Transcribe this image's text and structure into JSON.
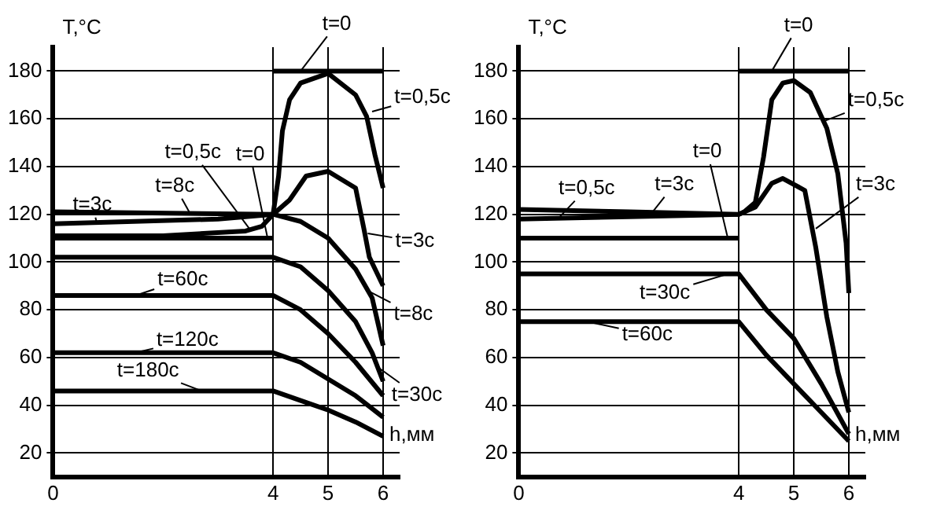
{
  "chart_data": [
    {
      "type": "line",
      "xlabel": "h,мм",
      "ylabel": "T,°C",
      "xlim": [
        0,
        6.3
      ],
      "ylim": [
        10,
        190
      ],
      "xticks": [
        0,
        4,
        5,
        6
      ],
      "yticks": [
        20,
        40,
        60,
        80,
        100,
        120,
        140,
        160,
        180
      ],
      "grid": true,
      "series": [
        {
          "color": "#000000",
          "x": [
            0,
            4
          ],
          "values": [
            110,
            110
          ]
        },
        {
          "color": "#000000",
          "x": [
            4,
            6
          ],
          "values": [
            180,
            180
          ]
        },
        {
          "color": "#000000",
          "x": [
            0,
            2,
            3.5,
            3.8,
            4,
            4.1,
            4.17,
            4.3,
            4.5,
            5,
            5.5,
            5.7,
            5.85,
            6
          ],
          "values": [
            111,
            111,
            113,
            115,
            120,
            136,
            155,
            168,
            175,
            179,
            170,
            161,
            145,
            131
          ]
        },
        {
          "color": "#000000",
          "x": [
            0,
            3,
            4,
            4.3,
            4.6,
            5,
            5.5,
            5.65,
            5.75,
            6
          ],
          "values": [
            116,
            118,
            120,
            126,
            136,
            138,
            131,
            114,
            102,
            90
          ]
        },
        {
          "color": "#000000",
          "x": [
            0,
            4,
            4.5,
            5,
            5.5,
            5.8,
            6
          ],
          "values": [
            121,
            120,
            117,
            110,
            97,
            85,
            65
          ]
        },
        {
          "color": "#000000",
          "x": [
            0,
            4,
            4.5,
            5,
            5.5,
            5.8,
            6
          ],
          "values": [
            102,
            102,
            98,
            88,
            75,
            62,
            50
          ]
        },
        {
          "color": "#000000",
          "x": [
            0,
            4,
            4.5,
            5,
            5.5,
            6
          ],
          "values": [
            86,
            86,
            80,
            70,
            58,
            44
          ]
        },
        {
          "color": "#000000",
          "x": [
            0,
            4,
            4.5,
            5,
            5.5,
            6
          ],
          "values": [
            62,
            62,
            58,
            51,
            44,
            35
          ]
        },
        {
          "color": "#000000",
          "x": [
            0,
            4,
            4.5,
            5,
            5.5,
            6
          ],
          "values": [
            46,
            46,
            42,
            38,
            33,
            27
          ]
        }
      ],
      "annotations": [
        {
          "text": "t=0",
          "x": 4.5,
          "y": 180
        },
        {
          "text": "t=0,5с",
          "x": 5.8,
          "y": 163
        },
        {
          "text": "t=0,5с",
          "x": 3.6,
          "y": 113
        },
        {
          "text": "t=0",
          "x": 3.9,
          "y": 110
        },
        {
          "text": "t=3с",
          "x": 0.8,
          "y": 116
        },
        {
          "text": "t=8с",
          "x": 2.5,
          "y": 120
        },
        {
          "text": "t=3с",
          "x": 5.72,
          "y": 112
        },
        {
          "text": "t=8с",
          "x": 5.72,
          "y": 88
        },
        {
          "text": "t=30с",
          "x": 5.9,
          "y": 56
        },
        {
          "text": "t=60с",
          "x": 1.5,
          "y": 86
        },
        {
          "text": "t=120с",
          "x": 1.5,
          "y": 62
        },
        {
          "text": "t=180с",
          "x": 2.7,
          "y": 46
        }
      ]
    },
    {
      "type": "line",
      "xlabel": "h,мм",
      "ylabel": "T,°C",
      "xlim": [
        0,
        6.3
      ],
      "ylim": [
        10,
        190
      ],
      "xticks": [
        0,
        4,
        5,
        6
      ],
      "yticks": [
        20,
        40,
        60,
        80,
        100,
        120,
        140,
        160,
        180
      ],
      "grid": true,
      "series": [
        {
          "color": "#000000",
          "x": [
            0,
            4
          ],
          "values": [
            110,
            110
          ]
        },
        {
          "color": "#000000",
          "x": [
            4,
            6
          ],
          "values": [
            180,
            180
          ]
        },
        {
          "color": "#000000",
          "x": [
            0,
            2,
            4,
            4.1,
            4.3,
            4.45,
            4.6,
            4.8,
            5,
            5.3,
            5.6,
            5.8,
            5.95,
            6
          ],
          "values": [
            118,
            119,
            120,
            121,
            125,
            144,
            168,
            175,
            176,
            171,
            156,
            137,
            108,
            87
          ]
        },
        {
          "color": "#000000",
          "x": [
            0,
            2,
            4,
            4.3,
            4.6,
            4.8,
            5.2,
            5.4,
            5.6,
            5.8,
            6
          ],
          "values": [
            122,
            121,
            120,
            123,
            133,
            135,
            130,
            106,
            77,
            54,
            37
          ]
        },
        {
          "color": "#000000",
          "x": [
            0,
            4,
            4.5,
            5,
            5.5,
            6
          ],
          "values": [
            95,
            95,
            80,
            68,
            49,
            28
          ]
        },
        {
          "color": "#000000",
          "x": [
            0,
            4,
            4.5,
            5,
            5.5,
            6
          ],
          "values": [
            75,
            75,
            61,
            49,
            37,
            25
          ]
        }
      ],
      "annotations": [
        {
          "text": "t=0",
          "x": 4.6,
          "y": 180
        },
        {
          "text": "t=0,5с",
          "x": 5.55,
          "y": 159
        },
        {
          "text": "t=0,5с",
          "x": 0.75,
          "y": 119
        },
        {
          "text": "t=3с",
          "x": 2.4,
          "y": 120
        },
        {
          "text": "t=0",
          "x": 3.8,
          "y": 110
        },
        {
          "text": "t=3с",
          "x": 5.4,
          "y": 114
        },
        {
          "text": "t=30с",
          "x": 3.8,
          "y": 95
        },
        {
          "text": "t=60с",
          "x": 1.25,
          "y": 75
        }
      ]
    }
  ]
}
